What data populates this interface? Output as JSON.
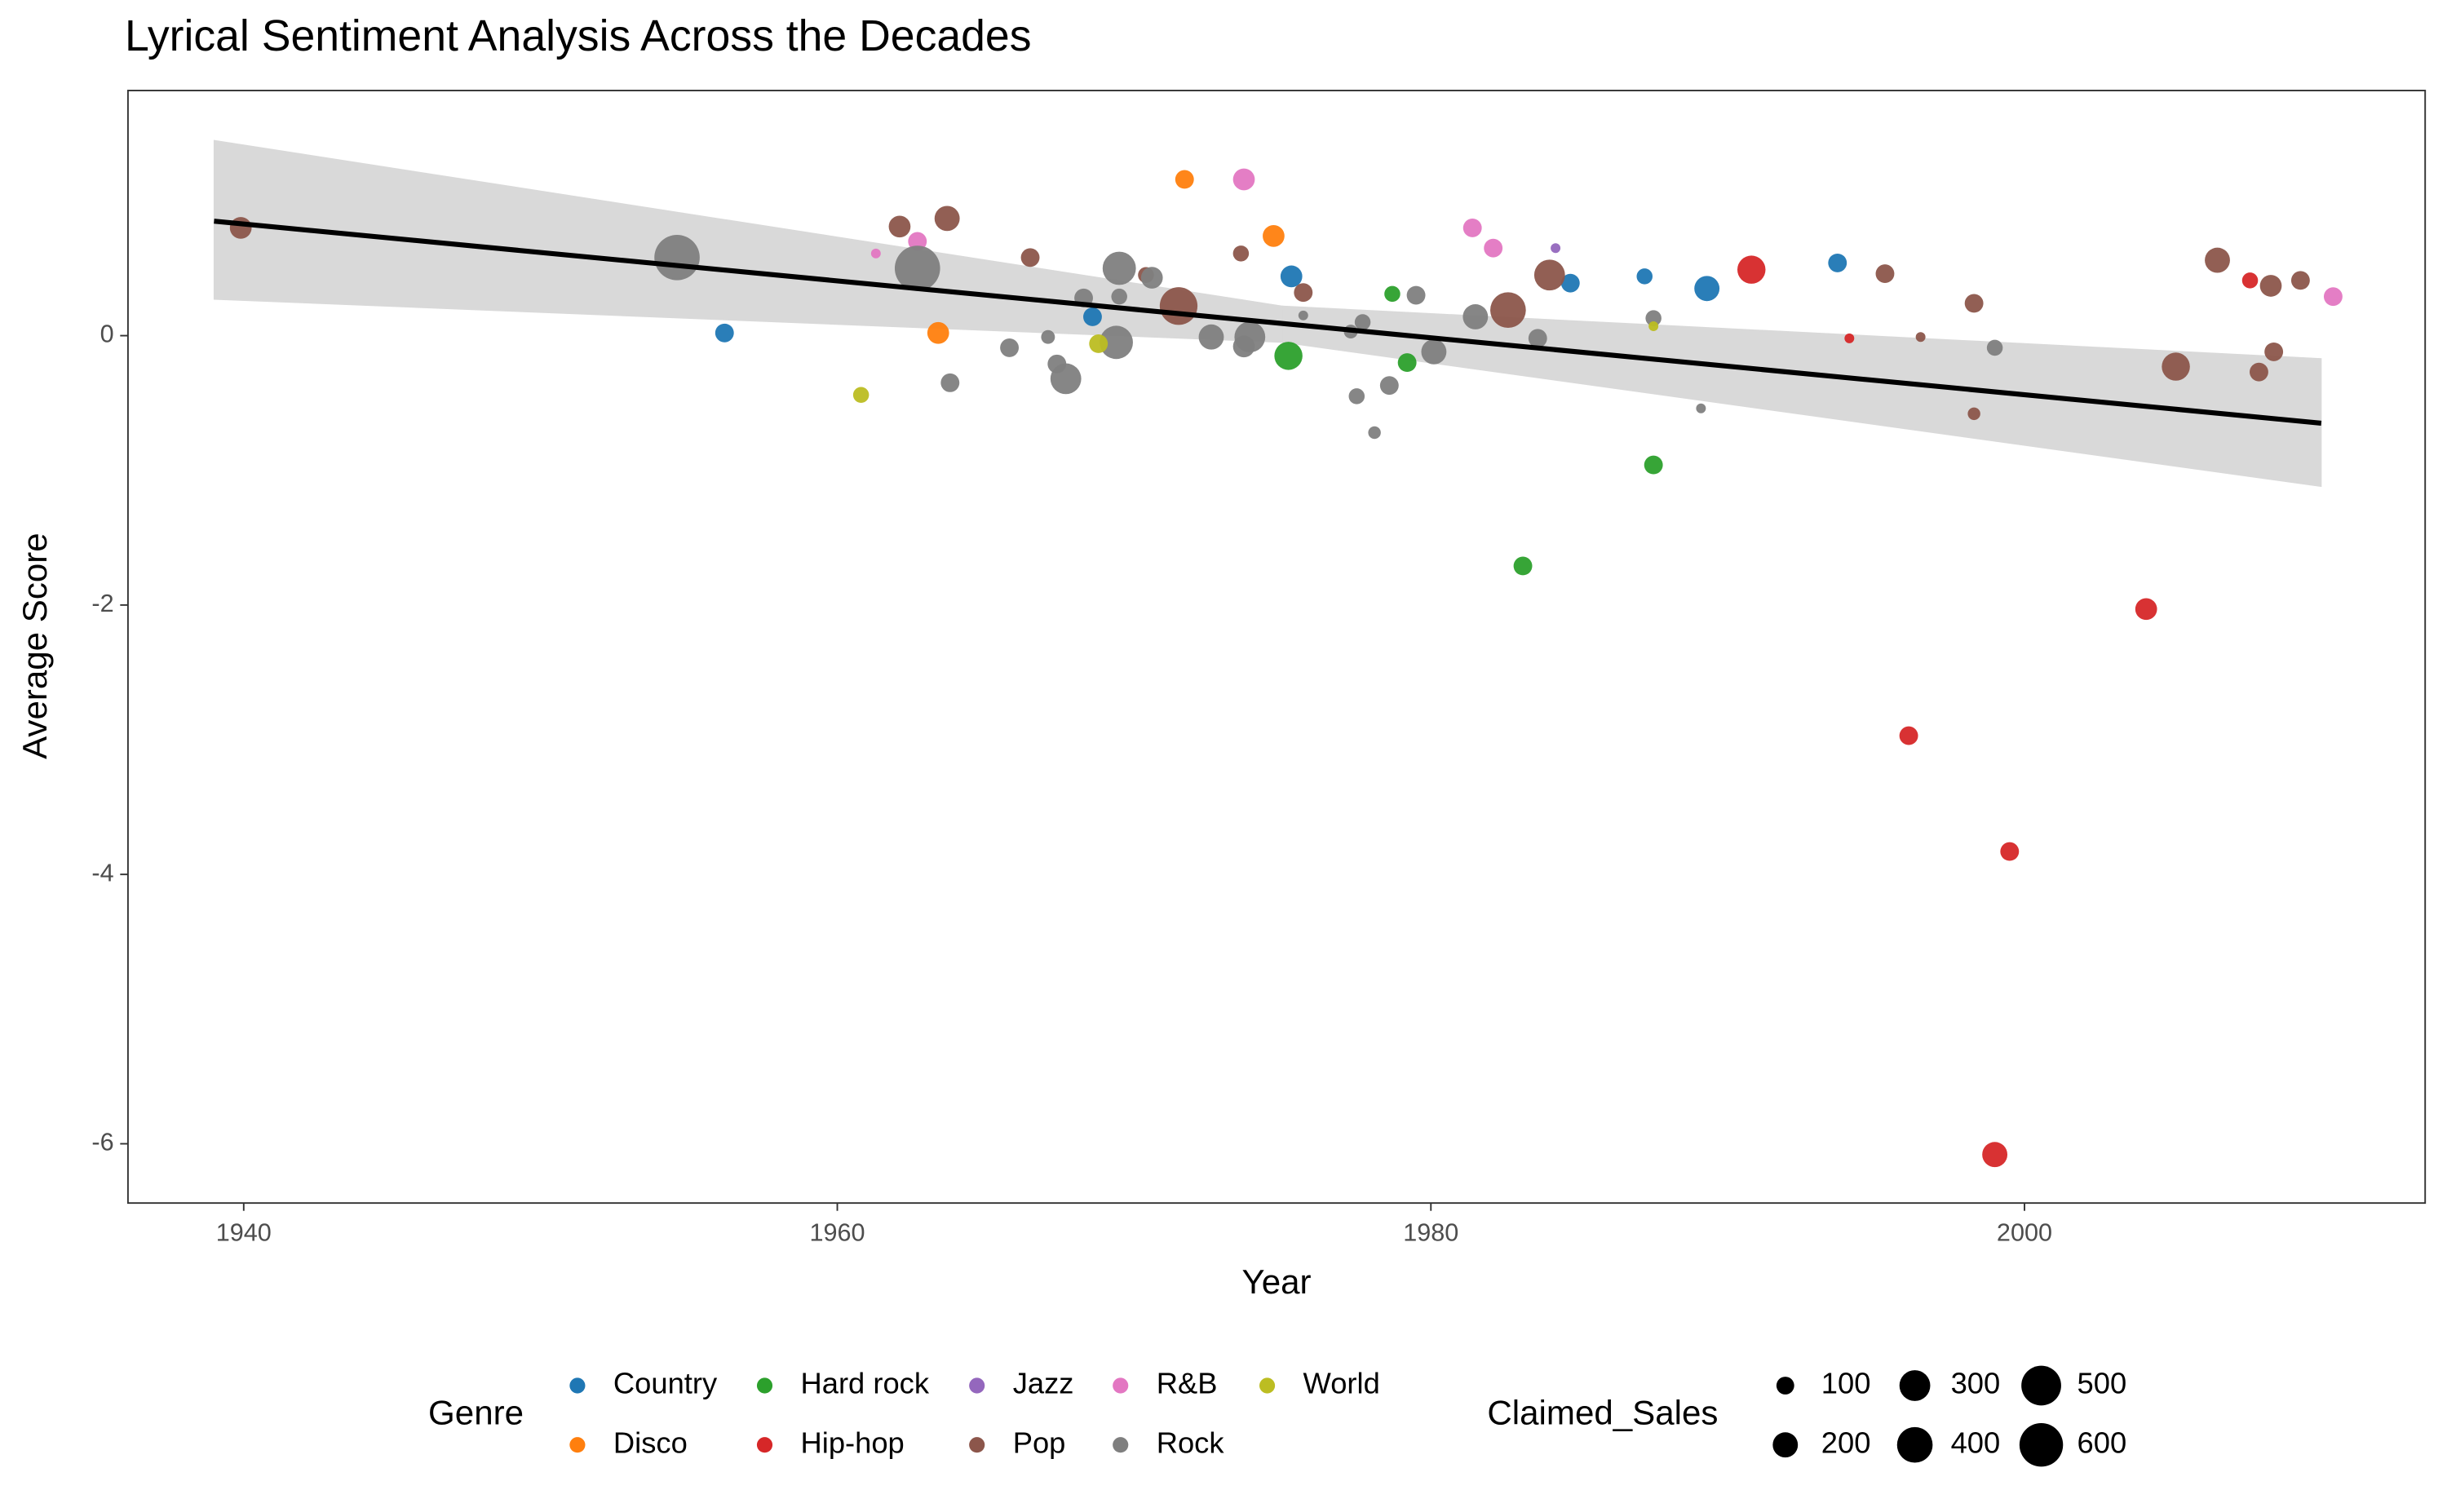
{
  "chart_data": {
    "type": "scatter",
    "title": "Lyrical Sentiment Analysis Across the Decades",
    "x_label": "Year",
    "y_label": "Average Score",
    "xlim": [
      1936.1,
      2013.5
    ],
    "ylim": [
      -6.44,
      1.82
    ],
    "xticks": [
      1940,
      1960,
      1980,
      2000
    ],
    "yticks": [
      -6,
      -4,
      -2,
      0
    ],
    "grid": false,
    "legend_title": "Genre",
    "legend_position": "bottom",
    "size_legend": {
      "title": "Claimed_Sales",
      "values": [
        100,
        200,
        300,
        400,
        500,
        600
      ]
    },
    "trend": {
      "color": "#000000",
      "band_color": "#d9d9d9",
      "x": [
        1939,
        1975,
        2010
      ],
      "y": [
        0.85,
        0.09,
        -0.65
      ],
      "upper": [
        1.45,
        0.22,
        -0.17
      ],
      "lower": [
        0.27,
        -0.05,
        -1.12
      ]
    },
    "series": [
      {
        "name": "Country",
        "color": "#1f77b4",
        "x": [
          1956.2,
          1968.6,
          1975.3,
          1984.7,
          1987.2,
          1989.3,
          1993.7
        ],
        "values": [
          0.02,
          0.14,
          0.44,
          0.39,
          0.44,
          0.35,
          0.54
        ],
        "sizes": [
          110,
          110,
          150,
          110,
          80,
          200,
          110
        ]
      },
      {
        "name": "Disco",
        "color": "#ff7f0e",
        "x": [
          1963.4,
          1971.7,
          1974.7
        ],
        "values": [
          0.02,
          1.16,
          0.74
        ],
        "sizes": [
          150,
          110,
          150
        ]
      },
      {
        "name": "Hard rock",
        "color": "#2ca02c",
        "x": [
          1975.2,
          1978.7,
          1979.2,
          1983.1,
          1987.5
        ],
        "values": [
          -0.15,
          0.31,
          -0.2,
          -1.71,
          -0.96
        ],
        "sizes": [
          250,
          80,
          110,
          110,
          110
        ]
      },
      {
        "name": "Hip-hop",
        "color": "#d62728",
        "x": [
          1990.8,
          1994.1,
          1996.1,
          1999.0,
          1999.5,
          2004.1,
          2007.6
        ],
        "values": [
          0.49,
          -0.02,
          -2.97,
          -6.08,
          -3.83,
          -2.03,
          0.41
        ],
        "sizes": [
          250,
          30,
          110,
          200,
          110,
          150,
          80
        ]
      },
      {
        "name": "Jazz",
        "color": "#9467bd",
        "x": [
          1984.2
        ],
        "values": [
          0.65
        ],
        "sizes": [
          30
        ]
      },
      {
        "name": "Pop",
        "color": "#8c564b",
        "x": [
          1939.9,
          1962.1,
          1963.7,
          1966.5,
          1970.4,
          1971.5,
          1973.6,
          1975.7,
          1982.6,
          1984.0,
          1995.3,
          1996.5,
          1998.3,
          1998.3,
          2005.1,
          2006.5,
          2007.9,
          2008.3,
          2008.4,
          2009.3
        ],
        "values": [
          0.8,
          0.81,
          0.87,
          0.58,
          0.45,
          0.22,
          0.61,
          0.32,
          0.19,
          0.45,
          0.46,
          -0.01,
          0.24,
          -0.58,
          -0.23,
          0.56,
          -0.27,
          0.37,
          -0.12,
          0.41
        ],
        "sizes": [
          150,
          150,
          200,
          110,
          80,
          450,
          80,
          110,
          400,
          300,
          110,
          30,
          110,
          50,
          250,
          200,
          110,
          150,
          110,
          110
        ]
      },
      {
        "name": "R&B",
        "color": "#e377c2",
        "x": [
          1961.3,
          1962.7,
          1973.7,
          1981.4,
          1982.1,
          2010.4
        ],
        "values": [
          0.61,
          0.7,
          1.16,
          0.8,
          0.65,
          0.29
        ],
        "sizes": [
          30,
          110,
          150,
          110,
          110,
          110
        ]
      },
      {
        "name": "Rock",
        "color": "#7f7f7f",
        "x": [
          1954.6,
          1962.7,
          1963.8,
          1965.8,
          1967.1,
          1967.4,
          1967.7,
          1968.3,
          1969.4,
          1969.5,
          1969.5,
          1970.6,
          1972.6,
          1973.7,
          1973.9,
          1975.7,
          1977.3,
          1977.5,
          1977.7,
          1978.1,
          1978.6,
          1979.5,
          1980.1,
          1981.5,
          1983.6,
          1987.5,
          1989.1,
          1999.0
        ],
        "values": [
          0.58,
          0.5,
          -0.35,
          -0.09,
          -0.01,
          -0.21,
          -0.32,
          0.28,
          -0.05,
          0.5,
          0.29,
          0.43,
          -0.01,
          -0.08,
          -0.01,
          0.15,
          0.03,
          -0.45,
          0.1,
          -0.72,
          -0.37,
          0.3,
          -0.12,
          0.14,
          -0.02,
          0.13,
          -0.54,
          -0.09
        ],
        "sizes": [
          650,
          650,
          110,
          110,
          60,
          110,
          300,
          110,
          350,
          350,
          80,
          150,
          200,
          150,
          300,
          30,
          60,
          80,
          80,
          50,
          110,
          110,
          200,
          200,
          110,
          80,
          30,
          80
        ]
      },
      {
        "name": "World",
        "color": "#bcbd22",
        "x": [
          1960.8,
          1968.8,
          1987.5
        ],
        "values": [
          -0.44,
          -0.06,
          0.07
        ],
        "sizes": [
          80,
          110,
          30
        ]
      }
    ]
  }
}
